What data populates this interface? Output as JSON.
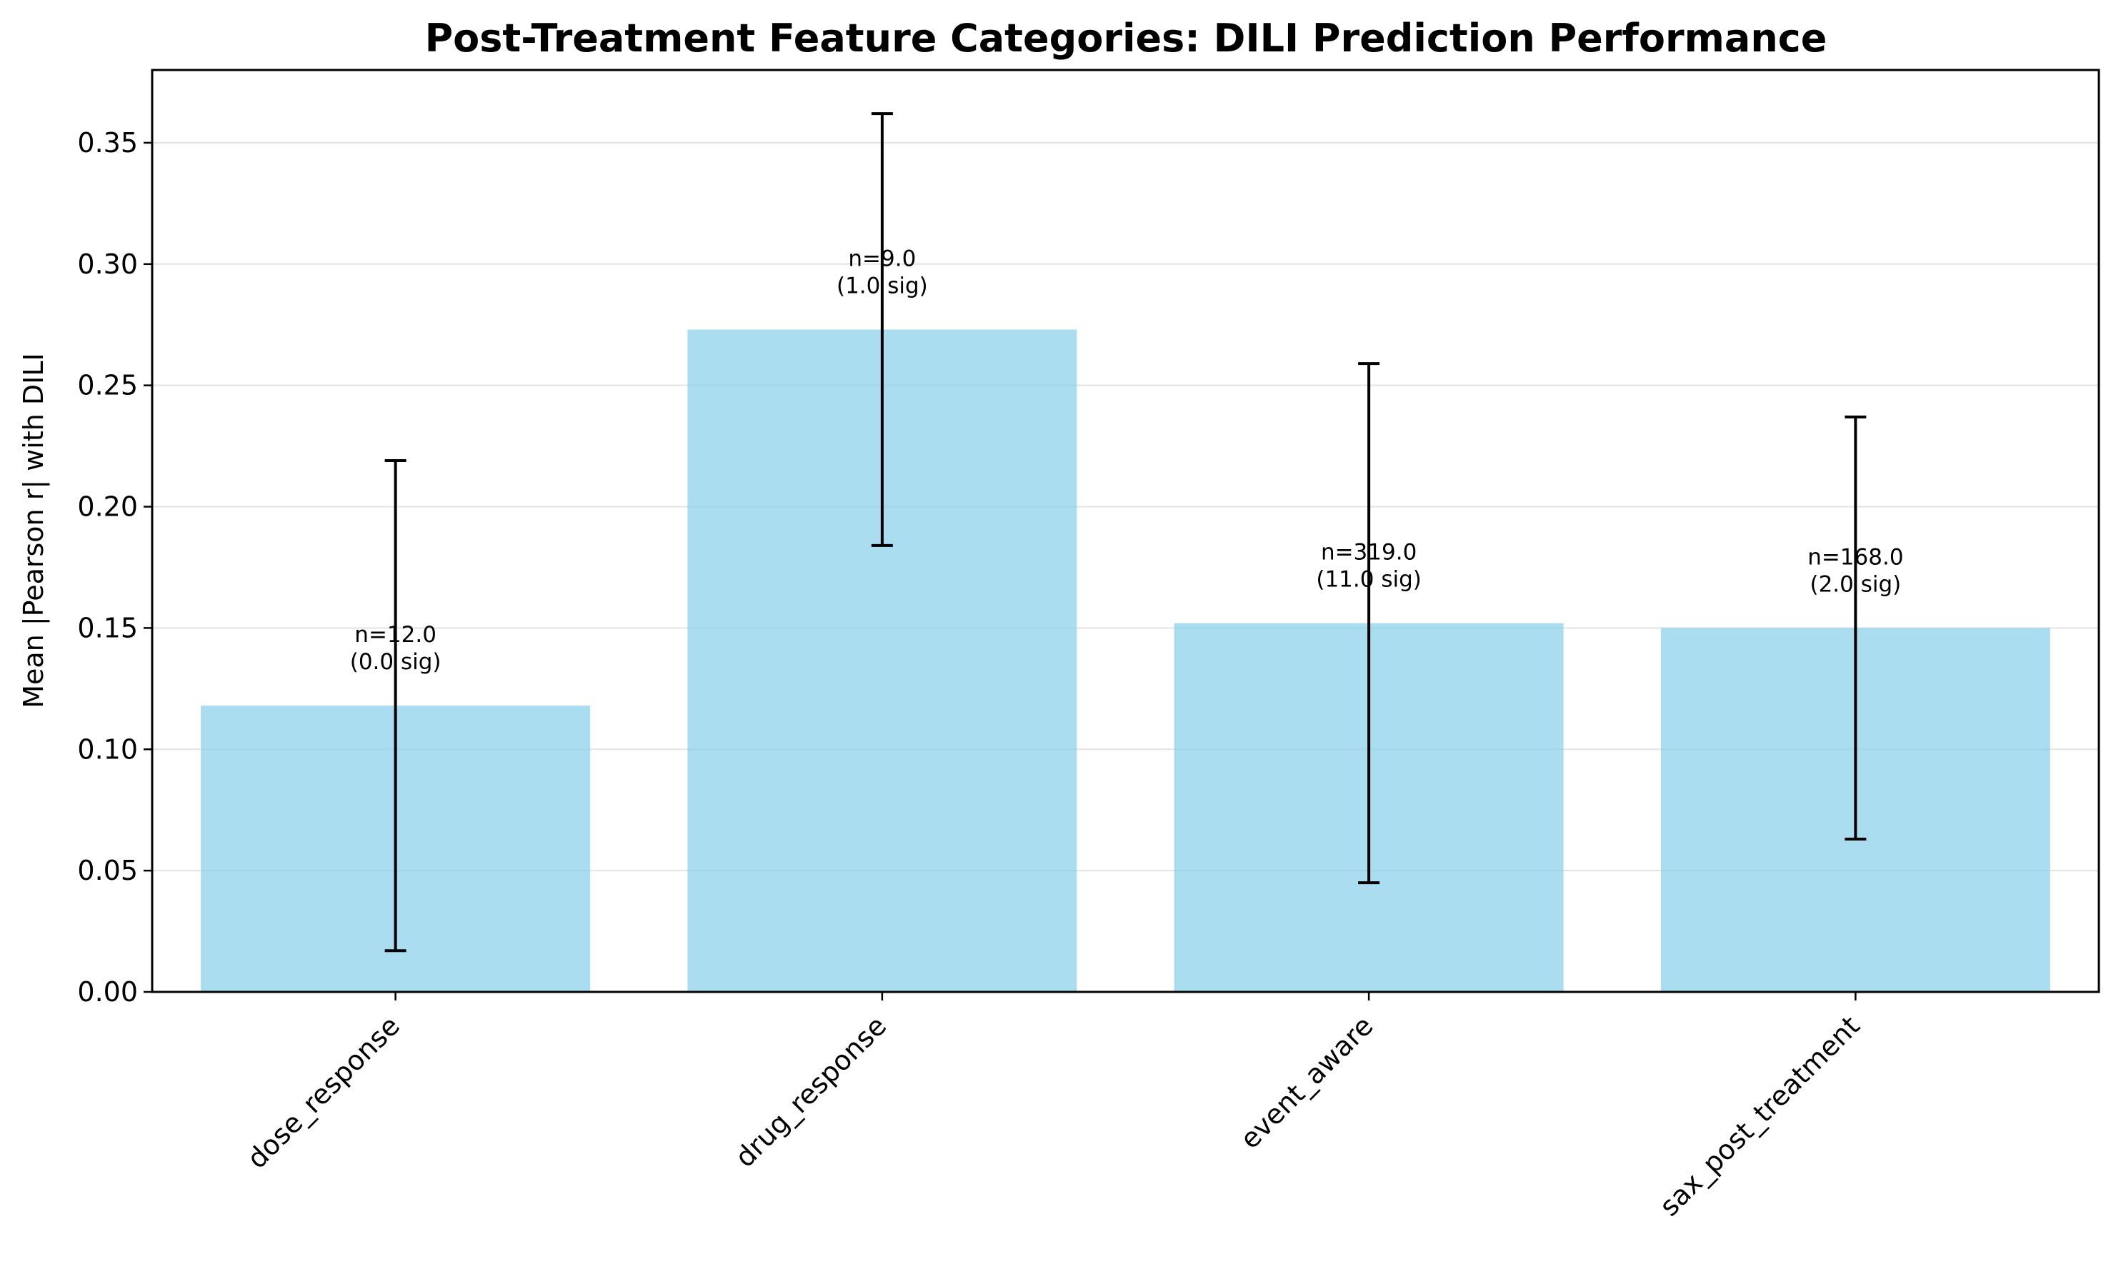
{
  "chart_data": {
    "type": "bar",
    "title": "Post-Treatment Feature Categories: DILI Prediction Performance",
    "xlabel": "",
    "ylabel": "Mean |Pearson r| with DILI",
    "categories": [
      "dose_response",
      "drug_response",
      "event_aware",
      "sax_post_treatment"
    ],
    "values": [
      0.118,
      0.273,
      0.152,
      0.15
    ],
    "errors": [
      0.101,
      0.089,
      0.107,
      0.087
    ],
    "annotations": [
      {
        "line1": "n=12.0",
        "line2": "(0.0 sig)"
      },
      {
        "line1": "n=9.0",
        "line2": "(1.0 sig)"
      },
      {
        "line1": "n=319.0",
        "line2": "(11.0 sig)"
      },
      {
        "line1": "n=168.0",
        "line2": "(2.0 sig)"
      }
    ],
    "ylim": [
      0,
      0.38
    ],
    "yticks": [
      "0.00",
      "0.05",
      "0.10",
      "0.15",
      "0.20",
      "0.25",
      "0.30",
      "0.35"
    ],
    "grid": "y",
    "bar_color": "#87ceeb"
  }
}
